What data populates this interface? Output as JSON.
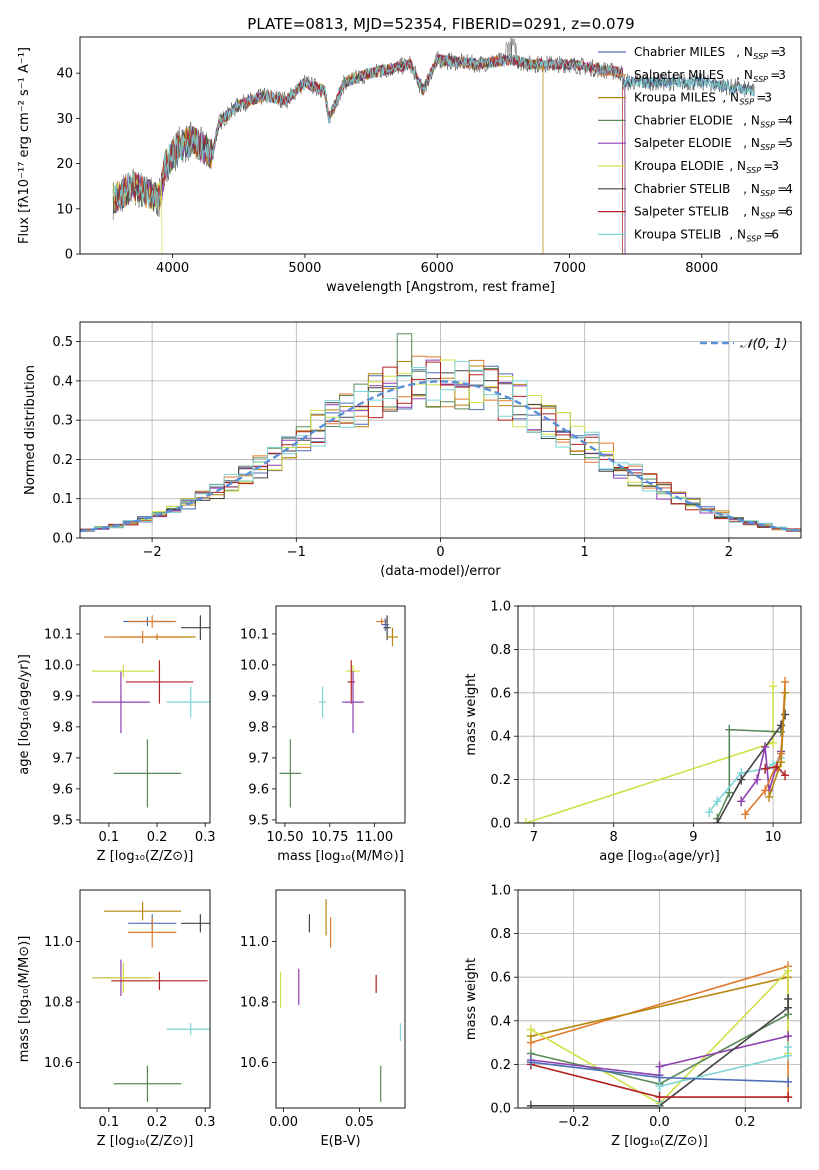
{
  "figure": {
    "title": "PLATE=0813, MJD=52354, FIBERID=0291, z=0.079"
  },
  "models": [
    {
      "name": "Chabrier MILES",
      "nssp": "3",
      "color": "#4d6fb5"
    },
    {
      "name": "Salpeter MILES",
      "nssp": "3",
      "color": "#e07a2e"
    },
    {
      "name": "Kroupa MILES",
      "nssp": "3",
      "color": "#b8860b"
    },
    {
      "name": "Chabrier ELODIE",
      "nssp": "4",
      "color": "#5a8a5a"
    },
    {
      "name": "Salpeter ELODIE",
      "nssp": "5",
      "color": "#8e3fb0"
    },
    {
      "name": "Kroupa ELODIE",
      "nssp": "3",
      "color": "#d2e04a"
    },
    {
      "name": "Chabrier STELIB",
      "nssp": "4",
      "color": "#444444"
    },
    {
      "name": "Salpeter STELIB",
      "nssp": "6",
      "color": "#b22222"
    },
    {
      "name": "Kroupa STELIB",
      "nssp": "6",
      "color": "#7fd6d6"
    }
  ],
  "chart_data": [
    {
      "id": "spectrum",
      "type": "line",
      "xlabel": "wavelength [Angstrom, rest frame]",
      "ylabel": "Flux [fλ10⁻¹⁷ erg cm⁻² s⁻¹ A⁻¹]",
      "xlim": [
        3300,
        8750
      ],
      "ylim": [
        0,
        48
      ],
      "xticks": [
        4000,
        5000,
        6000,
        7000,
        8000
      ],
      "yticks": [
        0,
        10,
        20,
        30,
        40
      ],
      "continuum": {
        "x": [
          3550,
          3700,
          3900,
          3950,
          4050,
          4150,
          4300,
          4350,
          4500,
          4700,
          4860,
          5000,
          5150,
          5180,
          5300,
          5500,
          5800,
          5890,
          6000,
          6300,
          6560,
          6700,
          7000,
          7200,
          7400
        ],
        "y": [
          12,
          15,
          12,
          20,
          24,
          25,
          22,
          29,
          33,
          35,
          34,
          38,
          36,
          30,
          38,
          40,
          42,
          36,
          43,
          42,
          43,
          42,
          42,
          41,
          40
        ]
      },
      "model_continuum": {
        "x": [
          7400,
          7700,
          8000,
          8200,
          8400
        ],
        "y": [
          38,
          38,
          38,
          37,
          36
        ]
      }
    },
    {
      "id": "residuals",
      "type": "histogram",
      "xlabel": "(data-model)/error",
      "ylabel": "Normed distribution",
      "xlim": [
        -2.5,
        2.5
      ],
      "ylim": [
        0,
        0.55
      ],
      "xticks": [
        -2,
        -1,
        0,
        1,
        2
      ],
      "yticks": [
        0.0,
        0.1,
        0.2,
        0.3,
        0.4,
        0.5
      ],
      "legend": "𝒩(0, 1)",
      "legend_loc": "upper-right",
      "reference_curve": "gaussian",
      "grid": true
    },
    {
      "id": "age-vs-Z",
      "type": "scatter-errorbar",
      "xlabel": "Z [log₁₀(Z/Z⊙)]",
      "ylabel": "age  [log₁₀(age/yr)]",
      "xlim": [
        0.04,
        0.31
      ],
      "ylim": [
        9.49,
        10.19
      ],
      "xticks": [
        0.1,
        0.2,
        0.3
      ],
      "yticks": [
        9.5,
        9.6,
        9.7,
        9.8,
        9.9,
        10.0,
        10.1
      ],
      "points": [
        {
          "m": 0,
          "x": 0.18,
          "y": 10.14,
          "xe": 0.05,
          "ye": 0.015
        },
        {
          "m": 1,
          "x": 0.19,
          "y": 10.14,
          "xe": 0.05,
          "ye": 0.02
        },
        {
          "m": 4,
          "x": 0.125,
          "y": 9.88,
          "xe": 0.06,
          "ye": 0.1
        },
        {
          "m": 5,
          "x": 0.13,
          "y": 9.98,
          "xe": 0.065,
          "ye": 0.02
        },
        {
          "m": 3,
          "x": 0.18,
          "y": 9.65,
          "xe": 0.07,
          "ye": 0.11
        },
        {
          "m": 6,
          "x": 0.29,
          "y": 10.12,
          "xe": 0.04,
          "ye": 0.04
        },
        {
          "m": 7,
          "x": 0.205,
          "y": 9.945,
          "xe": 0.07,
          "ye": 0.07
        },
        {
          "m": 8,
          "x": 0.27,
          "y": 9.88,
          "xe": 0.05,
          "ye": 0.05
        },
        {
          "m": 2,
          "x": 0.2,
          "y": 10.09,
          "xe": 0.08,
          "ye": 0.01
        },
        {
          "m": 1,
          "x": 0.17,
          "y": 10.09,
          "xe": 0.08,
          "ye": 0.02
        }
      ]
    },
    {
      "id": "age-vs-mass",
      "type": "scatter-errorbar",
      "xlabel": "mass [log₁₀(M/M⊙)]",
      "ylabel": "",
      "xlim": [
        10.45,
        11.17
      ],
      "ylim": [
        9.49,
        10.19
      ],
      "xticks": [
        10.5,
        10.75,
        11.0
      ],
      "xticklabels": [
        "10.50",
        "10.75",
        "11.00"
      ],
      "yticks": [
        9.5,
        9.6,
        9.7,
        9.8,
        9.9,
        10.0,
        10.1
      ],
      "points": [
        {
          "m": 1,
          "x": 11.04,
          "y": 10.14,
          "xe": 0.03,
          "ye": 0.01
        },
        {
          "m": 0,
          "x": 11.06,
          "y": 10.13,
          "xe": 0.02,
          "ye": 0.02
        },
        {
          "m": 6,
          "x": 11.07,
          "y": 10.12,
          "xe": 0.02,
          "ye": 0.04
        },
        {
          "m": 2,
          "x": 11.1,
          "y": 10.09,
          "xe": 0.03,
          "ye": 0.03
        },
        {
          "m": 5,
          "x": 10.88,
          "y": 9.98,
          "xe": 0.04,
          "ye": 0.02
        },
        {
          "m": 7,
          "x": 10.87,
          "y": 9.945,
          "xe": 0.02,
          "ye": 0.07
        },
        {
          "m": 4,
          "x": 10.88,
          "y": 9.88,
          "xe": 0.06,
          "ye": 0.1
        },
        {
          "m": 8,
          "x": 10.71,
          "y": 9.88,
          "xe": 0.02,
          "ye": 0.05
        },
        {
          "m": 3,
          "x": 10.53,
          "y": 9.65,
          "xe": 0.06,
          "ye": 0.11
        }
      ]
    },
    {
      "id": "weight-vs-age",
      "type": "line",
      "xlabel": "age  [log₁₀(age/yr)]",
      "ylabel": "mass weight",
      "xlim": [
        6.8,
        10.35
      ],
      "ylim": [
        0,
        1.0
      ],
      "xticks": [
        7,
        8,
        9,
        10
      ],
      "yticks": [
        0.0,
        0.2,
        0.4,
        0.6,
        0.8,
        1.0
      ],
      "grid": true,
      "series": [
        {
          "m": 5,
          "x": [
            6.9,
            10.0,
            10.0
          ],
          "y": [
            0.0,
            0.37,
            0.63
          ]
        },
        {
          "m": 3,
          "x": [
            9.3,
            9.45,
            9.45,
            10.1
          ],
          "y": [
            0.02,
            0.14,
            0.43,
            0.42
          ]
        },
        {
          "m": 8,
          "x": [
            9.2,
            9.3,
            9.6,
            9.9,
            10.0,
            10.1
          ],
          "y": [
            0.05,
            0.1,
            0.23,
            0.25,
            0.27,
            0.3
          ]
        },
        {
          "m": 6,
          "x": [
            9.3,
            9.6,
            10.1,
            10.15
          ],
          "y": [
            0.0,
            0.2,
            0.45,
            0.5
          ]
        },
        {
          "m": 4,
          "x": [
            9.6,
            9.8,
            9.9,
            9.95,
            10.1
          ],
          "y": [
            0.1,
            0.2,
            0.35,
            0.15,
            0.33
          ]
        },
        {
          "m": 1,
          "x": [
            9.65,
            9.9,
            10.1,
            10.15
          ],
          "y": [
            0.04,
            0.15,
            0.32,
            0.65
          ]
        },
        {
          "m": 7,
          "x": [
            9.9,
            10.05,
            10.15
          ],
          "y": [
            0.25,
            0.26,
            0.22
          ]
        },
        {
          "m": 2,
          "x": [
            9.95,
            10.1,
            10.15
          ],
          "y": [
            0.12,
            0.28,
            0.6
          ]
        }
      ]
    },
    {
      "id": "mass-vs-Z",
      "type": "scatter-errorbar",
      "xlabel": "Z [log₁₀(Z/Z⊙)]",
      "ylabel": "mass [log₁₀(M/M⊙)]",
      "xlim": [
        0.04,
        0.31
      ],
      "ylim": [
        10.45,
        11.17
      ],
      "xticks": [
        0.1,
        0.2,
        0.3
      ],
      "yticks": [
        10.6,
        10.8,
        11.0
      ],
      "points": [
        {
          "m": 2,
          "x": 0.17,
          "y": 11.1,
          "xe": 0.08,
          "ye": 0.03
        },
        {
          "m": 0,
          "x": 0.19,
          "y": 11.06,
          "xe": 0.05,
          "ye": 0.03
        },
        {
          "m": 6,
          "x": 0.29,
          "y": 11.06,
          "xe": 0.04,
          "ye": 0.03
        },
        {
          "m": 1,
          "x": 0.19,
          "y": 11.03,
          "xe": 0.05,
          "ye": 0.05
        },
        {
          "m": 4,
          "x": 0.125,
          "y": 10.88,
          "xe": 0.06,
          "ye": 0.06
        },
        {
          "m": 5,
          "x": 0.13,
          "y": 10.88,
          "xe": 0.065,
          "ye": 0.05
        },
        {
          "m": 7,
          "x": 0.205,
          "y": 10.87,
          "xe": 0.1,
          "ye": 0.03
        },
        {
          "m": 8,
          "x": 0.27,
          "y": 10.71,
          "xe": 0.05,
          "ye": 0.02
        },
        {
          "m": 3,
          "x": 0.18,
          "y": 10.53,
          "xe": 0.07,
          "ye": 0.06
        }
      ]
    },
    {
      "id": "mass-vs-ebv",
      "type": "scatter-errorbar",
      "xlabel": "E(B-V)",
      "ylabel": "",
      "xlim": [
        -0.005,
        0.08
      ],
      "ylim": [
        10.45,
        11.17
      ],
      "xticks": [
        0.0,
        0.05
      ],
      "xticklabels": [
        "0.00",
        "0.05"
      ],
      "yticks": [
        10.6,
        10.8,
        11.0
      ],
      "points": [
        {
          "m": 6,
          "x": 0.017,
          "y": 11.06,
          "xe": 0,
          "ye": 0.03
        },
        {
          "m": 2,
          "x": 0.028,
          "y": 11.08,
          "xe": 0,
          "ye": 0.06
        },
        {
          "m": 1,
          "x": 0.031,
          "y": 11.03,
          "xe": 0,
          "ye": 0.05
        },
        {
          "m": 4,
          "x": 0.01,
          "y": 10.85,
          "xe": 0,
          "ye": 0.06
        },
        {
          "m": 5,
          "x": -0.002,
          "y": 10.84,
          "xe": 0,
          "ye": 0.06
        },
        {
          "m": 7,
          "x": 0.061,
          "y": 10.86,
          "xe": 0,
          "ye": 0.03
        },
        {
          "m": 8,
          "x": 0.077,
          "y": 10.7,
          "xe": 0,
          "ye": 0.03
        },
        {
          "m": 3,
          "x": 0.064,
          "y": 10.53,
          "xe": 0,
          "ye": 0.06
        }
      ]
    },
    {
      "id": "weight-vs-Z",
      "type": "line",
      "xlabel": "Z [log₁₀(Z/Z⊙)]",
      "ylabel": "mass weight",
      "xlim": [
        -0.33,
        0.33
      ],
      "ylim": [
        0,
        1.0
      ],
      "xticks": [
        -0.2,
        0.0,
        0.2
      ],
      "xticklabels": [
        "−0.2",
        "0.0",
        "0.2"
      ],
      "yticks": [
        0.0,
        0.2,
        0.4,
        0.6,
        0.8,
        1.0
      ],
      "grid": true,
      "series": [
        {
          "m": 1,
          "x": [
            -0.3,
            0.3,
            0.3
          ],
          "y": [
            0.3,
            0.65,
            0.05
          ]
        },
        {
          "m": 2,
          "x": [
            -0.3,
            0.3
          ],
          "y": [
            0.33,
            0.6
          ]
        },
        {
          "m": 5,
          "x": [
            -0.3,
            0.0,
            0.3,
            0.3
          ],
          "y": [
            0.36,
            0.02,
            0.63,
            0.25
          ]
        },
        {
          "m": 3,
          "x": [
            -0.3,
            0.0,
            0.3
          ],
          "y": [
            0.25,
            0.11,
            0.43
          ]
        },
        {
          "m": 4,
          "x": [
            -0.3,
            0.0,
            0.0,
            0.3
          ],
          "y": [
            0.22,
            0.15,
            0.19,
            0.33
          ]
        },
        {
          "m": 6,
          "x": [
            -0.3,
            0.0,
            0.3,
            0.3
          ],
          "y": [
            0.01,
            0.01,
            0.46,
            0.5
          ]
        },
        {
          "m": 8,
          "x": [
            0.0,
            0.0,
            0.3,
            0.3
          ],
          "y": [
            0.03,
            0.1,
            0.24,
            0.28
          ]
        },
        {
          "m": 7,
          "x": [
            -0.3,
            0.0,
            0.3
          ],
          "y": [
            0.2,
            0.05,
            0.05
          ]
        },
        {
          "m": 0,
          "x": [
            -0.3,
            0.0,
            0.3
          ],
          "y": [
            0.21,
            0.14,
            0.12
          ]
        }
      ]
    }
  ]
}
